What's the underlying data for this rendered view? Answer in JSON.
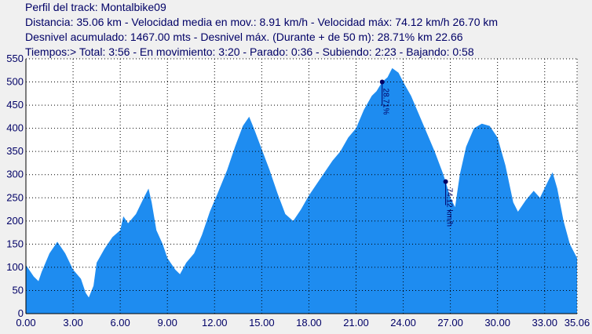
{
  "header": [
    "Perfil del track: Montalbike09",
    "Distancia: 35.06 km - Velocidad media en mov.: 8.91 km/h - Velocidad máx: 74.12 km/h 26.70 km",
    "Desnivel acumulado: 1467.00 mts - Desnivel máx. (Durante + de 50 m): 28.71% km 22.66",
    "Tiempos:> Total: 3:56 - En movimiento: 3:20 - Parado: 0:36 - Subiendo: 2:23 - Bajando: 0:58"
  ],
  "chart_data": {
    "type": "area",
    "color": "#1e8cf0",
    "grid": true,
    "x": [
      0,
      0.5,
      0.8,
      1.0,
      1.5,
      2.0,
      2.5,
      3.0,
      3.5,
      3.8,
      4.0,
      4.3,
      4.5,
      5.0,
      5.5,
      6.0,
      6.2,
      6.5,
      7.0,
      7.5,
      7.8,
      8.0,
      8.3,
      8.7,
      9.0,
      9.5,
      9.8,
      10.2,
      10.7,
      11.2,
      11.7,
      12.2,
      12.8,
      13.3,
      13.8,
      14.2,
      14.5,
      15.0,
      15.5,
      16.0,
      16.5,
      17.0,
      17.5,
      18.0,
      18.7,
      19.5,
      20.0,
      20.5,
      21.0,
      21.5,
      22.0,
      22.3,
      22.66,
      23.0,
      23.3,
      23.7,
      24.0,
      24.5,
      25.0,
      25.5,
      26.0,
      26.5,
      26.7,
      27.0,
      27.3,
      27.6,
      28.0,
      28.5,
      29.0,
      29.5,
      30.0,
      30.5,
      31.0,
      31.3,
      31.8,
      32.3,
      32.7,
      33.2,
      33.5,
      33.8,
      34.2,
      34.6,
      35.06
    ],
    "y": [
      105,
      80,
      70,
      90,
      130,
      155,
      130,
      95,
      75,
      45,
      35,
      60,
      110,
      140,
      165,
      180,
      210,
      195,
      215,
      250,
      270,
      240,
      180,
      150,
      120,
      95,
      85,
      110,
      130,
      170,
      220,
      260,
      310,
      360,
      405,
      425,
      400,
      355,
      310,
      260,
      215,
      200,
      225,
      255,
      290,
      330,
      350,
      380,
      400,
      440,
      470,
      480,
      500,
      510,
      530,
      520,
      500,
      470,
      430,
      390,
      350,
      305,
      285,
      250,
      230,
      300,
      360,
      400,
      410,
      405,
      380,
      320,
      240,
      220,
      245,
      265,
      250,
      285,
      305,
      270,
      200,
      150,
      120
    ],
    "xlim": [
      0,
      35.06
    ],
    "xticks": [
      {
        "value": 0,
        "label": "0.00"
      },
      {
        "value": 3,
        "label": "3.00"
      },
      {
        "value": 6,
        "label": "6.00"
      },
      {
        "value": 9,
        "label": "9.00"
      },
      {
        "value": 12,
        "label": "12.00"
      },
      {
        "value": 15,
        "label": "15.00"
      },
      {
        "value": 18,
        "label": "18.00"
      },
      {
        "value": 21,
        "label": "21.00"
      },
      {
        "value": 24,
        "label": "24.00"
      },
      {
        "value": 27,
        "label": "27.00"
      },
      {
        "value": 30,
        "label": "30.00"
      },
      {
        "value": 33,
        "label": "33.00"
      },
      35.06
    ],
    "ylim": [
      0,
      550
    ],
    "yticks": [
      0,
      50,
      100,
      150,
      200,
      250,
      300,
      350,
      400,
      450,
      500,
      550
    ],
    "annotations": [
      {
        "x": 22.66,
        "y": 500,
        "text": "28.71%"
      },
      {
        "x": 26.7,
        "y": 285,
        "text": "74.12 km/h"
      }
    ]
  }
}
